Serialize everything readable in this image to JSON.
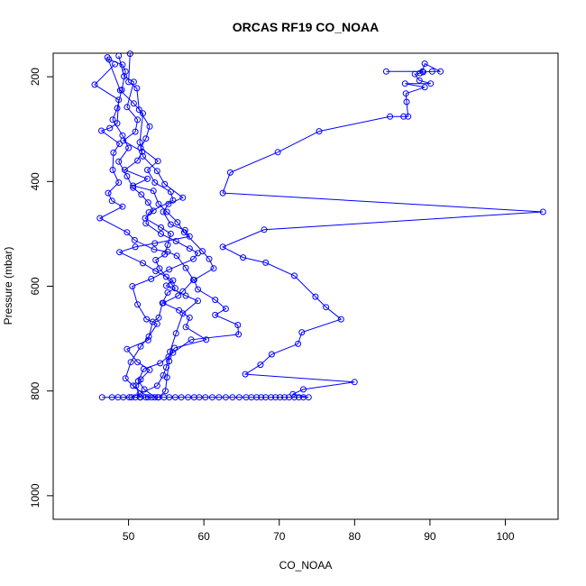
{
  "chart_data": {
    "type": "line",
    "title": "ORCAS RF19 CO_NOAA",
    "xlabel": "CO_NOAA",
    "ylabel": "Pressure (mbar)",
    "xlim": [
      40,
      107
    ],
    "ylim": [
      1045,
      155
    ],
    "y_reversed": true,
    "xticks": [
      50,
      60,
      70,
      80,
      90,
      100
    ],
    "yticks": [
      200,
      400,
      600,
      800,
      1000
    ],
    "grid": false,
    "legend": "none",
    "series_color": "#0000ff",
    "marker": "open-circle",
    "series": [
      {
        "values": [
          [
            46.5,
            812
          ],
          [
            47.8,
            812
          ],
          [
            48.6,
            812
          ],
          [
            49.3,
            812
          ],
          [
            50.1,
            812
          ],
          [
            50.9,
            812
          ],
          [
            51.6,
            812
          ],
          [
            52.3,
            812
          ],
          [
            53.1,
            812
          ],
          [
            53.9,
            812
          ],
          [
            54.7,
            812
          ],
          [
            55.4,
            812
          ],
          [
            56.2,
            812
          ],
          [
            57.0,
            812
          ],
          [
            57.9,
            812
          ],
          [
            58.7,
            812
          ],
          [
            59.4,
            812
          ],
          [
            60.2,
            812
          ],
          [
            61.1,
            812
          ],
          [
            62.0,
            812
          ],
          [
            62.9,
            812
          ],
          [
            63.8,
            812
          ],
          [
            64.7,
            812
          ],
          [
            65.6,
            812
          ],
          [
            66.3,
            812
          ],
          [
            67.0,
            812
          ],
          [
            67.6,
            812
          ],
          [
            68.2,
            812
          ],
          [
            68.9,
            812
          ],
          [
            69.5,
            812
          ],
          [
            70.1,
            812
          ],
          [
            70.7,
            812
          ],
          [
            71.3,
            812
          ],
          [
            72.0,
            812
          ],
          [
            72.6,
            812
          ],
          [
            73.2,
            812
          ],
          [
            73.9,
            812
          ],
          [
            71.8,
            806
          ],
          [
            73.2,
            797
          ],
          [
            80.0,
            783
          ],
          [
            65.5,
            768
          ],
          [
            67.5,
            750
          ],
          [
            69.0,
            730
          ],
          [
            72.5,
            710
          ],
          [
            73.0,
            688
          ],
          [
            78.2,
            663
          ],
          [
            76.2,
            640
          ],
          [
            74.8,
            620
          ],
          [
            72.0,
            580
          ],
          [
            68.2,
            555
          ],
          [
            65.2,
            545
          ],
          [
            62.5,
            525
          ],
          [
            68.0,
            492
          ],
          [
            105.0,
            458
          ],
          [
            62.5,
            422
          ],
          [
            63.5,
            383
          ],
          [
            69.8,
            344
          ],
          [
            75.3,
            304
          ],
          [
            84.7,
            276
          ],
          [
            86.5,
            276
          ],
          [
            87.1,
            276
          ],
          [
            86.9,
            248
          ],
          [
            86.8,
            232
          ],
          [
            89.3,
            220
          ],
          [
            86.7,
            213
          ],
          [
            90.1,
            213
          ],
          [
            88.6,
            207
          ],
          [
            88.0,
            195
          ],
          [
            88.7,
            193
          ],
          [
            89.1,
            191
          ],
          [
            90.3,
            190
          ],
          [
            91.4,
            190
          ],
          [
            89.3,
            175
          ],
          [
            89.0,
            190
          ],
          [
            84.2,
            190
          ]
        ]
      },
      {
        "values": [
          [
            48.2,
            176
          ],
          [
            45.5,
            215
          ],
          [
            48.7,
            244
          ],
          [
            48.5,
            289
          ],
          [
            47.5,
            298
          ],
          [
            46.4,
            303
          ],
          [
            48.8,
            328
          ],
          [
            48.0,
            345
          ],
          [
            47.9,
            378
          ],
          [
            48.7,
            402
          ],
          [
            47.3,
            422
          ],
          [
            47.8,
            437
          ],
          [
            49.2,
            448
          ],
          [
            46.2,
            470
          ],
          [
            49.8,
            497
          ],
          [
            50.8,
            512
          ],
          [
            53.4,
            530
          ],
          [
            55.2,
            534
          ],
          [
            56.4,
            542
          ],
          [
            57.6,
            565
          ],
          [
            58.6,
            588
          ],
          [
            57.2,
            610
          ],
          [
            56.6,
            618
          ],
          [
            54.6,
            632
          ],
          [
            56.7,
            646
          ],
          [
            58.1,
            660
          ],
          [
            57.6,
            678
          ],
          [
            60.3,
            702
          ],
          [
            56.1,
            718
          ],
          [
            55.3,
            735
          ],
          [
            55.0,
            755
          ],
          [
            54.6,
            770
          ],
          [
            53.8,
            790
          ],
          [
            51.5,
            805
          ],
          [
            50.4,
            812
          ]
        ]
      },
      {
        "values": [
          [
            48.7,
            160
          ],
          [
            49.4,
            199
          ],
          [
            50.7,
            210
          ],
          [
            49.8,
            258
          ],
          [
            51.2,
            282
          ],
          [
            50.9,
            305
          ],
          [
            49.3,
            322
          ],
          [
            51.8,
            343
          ],
          [
            51.2,
            360
          ],
          [
            49.5,
            378
          ],
          [
            52.5,
            395
          ],
          [
            50.6,
            408
          ],
          [
            53.3,
            418
          ],
          [
            54.0,
            443
          ],
          [
            55.1,
            458
          ],
          [
            56.5,
            478
          ],
          [
            57.4,
            497
          ],
          [
            59.8,
            533
          ],
          [
            60.7,
            548
          ],
          [
            61.3,
            566
          ],
          [
            58.7,
            588
          ],
          [
            59.2,
            606
          ],
          [
            61.5,
            626
          ],
          [
            62.9,
            643
          ],
          [
            61.5,
            655
          ],
          [
            64.5,
            674
          ],
          [
            64.6,
            692
          ],
          [
            58.3,
            702
          ],
          [
            55.9,
            727
          ],
          [
            54.2,
            747
          ],
          [
            52.0,
            758
          ],
          [
            51.3,
            781
          ],
          [
            52.1,
            797
          ],
          [
            53.5,
            812
          ]
        ]
      },
      {
        "values": [
          [
            47.4,
            167
          ],
          [
            49.2,
            177
          ],
          [
            49.6,
            190
          ],
          [
            49.1,
            225
          ],
          [
            48.5,
            260
          ],
          [
            47.9,
            282
          ],
          [
            49.2,
            312
          ],
          [
            50.0,
            336
          ],
          [
            48.7,
            362
          ],
          [
            49.8,
            390
          ],
          [
            50.6,
            412
          ],
          [
            51.7,
            425
          ],
          [
            52.6,
            440
          ],
          [
            53.3,
            456
          ],
          [
            52.2,
            470
          ],
          [
            54.3,
            488
          ],
          [
            55.6,
            500
          ],
          [
            55.2,
            521
          ],
          [
            54.8,
            539
          ],
          [
            53.6,
            550
          ],
          [
            54.1,
            566
          ],
          [
            55.0,
            582
          ],
          [
            55.7,
            596
          ],
          [
            56.2,
            604
          ],
          [
            55.2,
            612
          ],
          [
            54.5,
            632
          ],
          [
            54.0,
            660
          ],
          [
            53.2,
            668
          ],
          [
            52.6,
            703
          ],
          [
            49.8,
            720
          ],
          [
            51.2,
            745
          ],
          [
            52.8,
            760
          ],
          [
            51.6,
            778
          ],
          [
            51.0,
            790
          ],
          [
            51.5,
            812
          ]
        ]
      },
      {
        "values": [
          [
            50.2,
            156
          ],
          [
            50.0,
            210
          ],
          [
            51.1,
            222
          ],
          [
            51.4,
            263
          ],
          [
            52.8,
            295
          ],
          [
            52.3,
            318
          ],
          [
            51.6,
            336
          ],
          [
            53.9,
            361
          ],
          [
            52.5,
            378
          ],
          [
            53.5,
            402
          ],
          [
            55.6,
            420
          ],
          [
            55.9,
            436
          ],
          [
            52.7,
            459
          ],
          [
            52.3,
            480
          ],
          [
            54.3,
            500
          ],
          [
            56.3,
            514
          ],
          [
            58.1,
            528
          ],
          [
            59.2,
            537
          ],
          [
            58.6,
            548
          ],
          [
            55.4,
            568
          ],
          [
            53.0,
            586
          ],
          [
            50.5,
            600
          ],
          [
            51.2,
            635
          ],
          [
            52.4,
            663
          ],
          [
            53.8,
            672
          ],
          [
            52.7,
            696
          ],
          [
            51.6,
            715
          ],
          [
            50.3,
            745
          ],
          [
            49.6,
            776
          ],
          [
            50.6,
            790
          ],
          [
            52.6,
            812
          ]
        ]
      },
      {
        "values": [
          [
            47.2,
            163
          ],
          [
            48.9,
            226
          ],
          [
            50.7,
            251
          ],
          [
            51.9,
            270
          ],
          [
            51.5,
            325
          ],
          [
            51.9,
            352
          ],
          [
            53.8,
            380
          ],
          [
            54.8,
            405
          ],
          [
            57.2,
            431
          ],
          [
            55.3,
            443
          ],
          [
            54.6,
            458
          ],
          [
            55.6,
            482
          ],
          [
            57.5,
            493
          ],
          [
            58.1,
            505
          ],
          [
            53.5,
            518
          ],
          [
            50.9,
            525
          ],
          [
            48.8,
            535
          ],
          [
            51.9,
            556
          ],
          [
            53.6,
            571
          ],
          [
            55.9,
            589
          ],
          [
            55.0,
            599
          ],
          [
            57.6,
            618
          ],
          [
            59.2,
            628
          ],
          [
            57.2,
            652
          ],
          [
            56.3,
            690
          ],
          [
            55.5,
            725
          ],
          [
            55.4,
            743
          ],
          [
            55.1,
            774
          ],
          [
            54.9,
            800
          ],
          [
            54.0,
            812
          ]
        ]
      }
    ]
  }
}
